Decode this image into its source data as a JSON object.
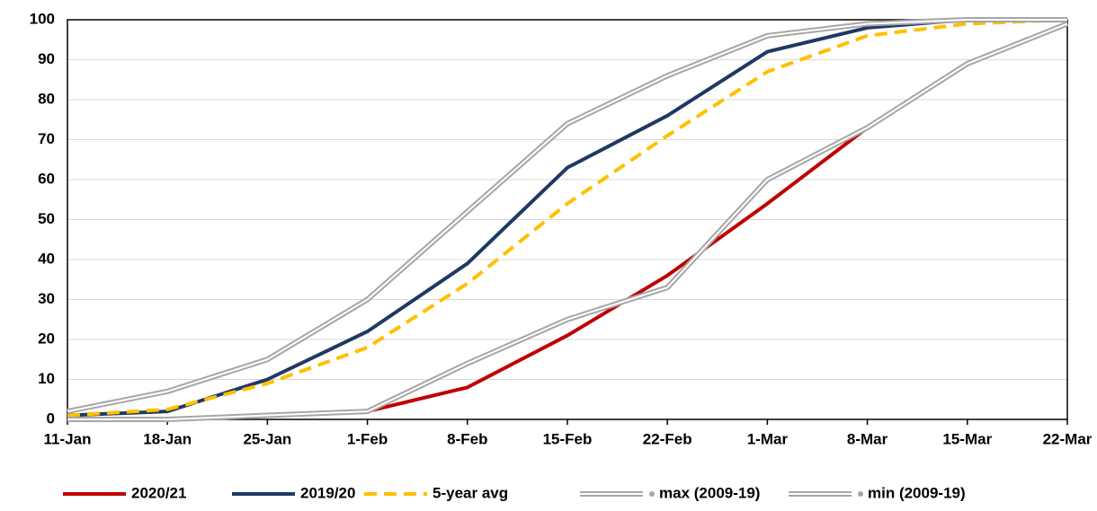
{
  "chart_data": {
    "type": "line",
    "categories": [
      "11-Jan",
      "18-Jan",
      "25-Jan",
      "1-Feb",
      "8-Feb",
      "15-Feb",
      "22-Feb",
      "1-Mar",
      "8-Mar",
      "15-Mar",
      "22-Mar"
    ],
    "series": [
      {
        "name": "2020/21",
        "color": "#c00000",
        "style": "solid",
        "values": [
          0,
          0,
          1,
          2,
          8,
          21,
          36,
          54,
          73,
          null,
          null
        ]
      },
      {
        "name": "2019/20",
        "color": "#1f3864",
        "style": "solid",
        "values": [
          1,
          2,
          10,
          22,
          39,
          63,
          76,
          92,
          98,
          100,
          100
        ]
      },
      {
        "name": "5-year avg",
        "color": "#ffc000",
        "style": "dashed",
        "values": [
          1,
          2.5,
          9,
          18,
          34,
          54,
          71,
          87,
          96,
          99,
          100
        ]
      },
      {
        "name": "max (2009-19)",
        "color": "#a6a6a6",
        "style": "double",
        "values": [
          2,
          7,
          15,
          30,
          52,
          74,
          86,
          96,
          99,
          100,
          100
        ]
      },
      {
        "name": "min (2009-19)",
        "color": "#a6a6a6",
        "style": "double",
        "values": [
          0,
          0,
          1,
          2,
          14,
          25,
          33,
          60,
          73,
          89,
          99
        ]
      }
    ],
    "ylim": [
      0,
      100
    ],
    "yticks": [
      0,
      10,
      20,
      30,
      40,
      50,
      60,
      70,
      80,
      90,
      100
    ],
    "grid": true,
    "legend": "bottom"
  }
}
